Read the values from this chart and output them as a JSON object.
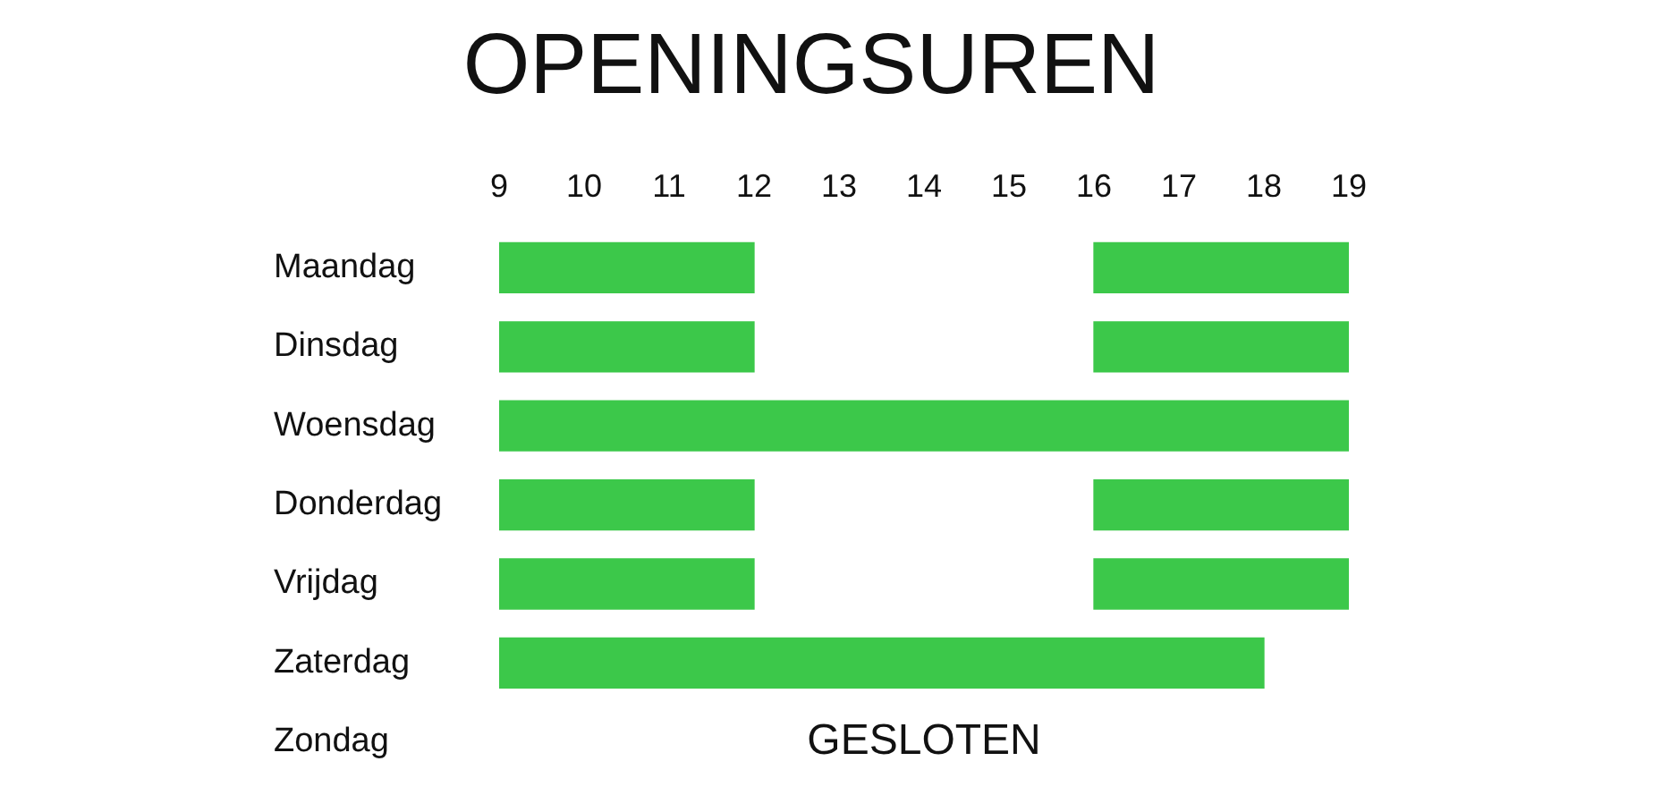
{
  "chart_data": {
    "type": "bar",
    "orientation": "horizontal",
    "title": "OPENINGSUREN",
    "categories": [
      "Maandag",
      "Dinsdag",
      "Woensdag",
      "Donderdag",
      "Vrijdag",
      "Zaterdag",
      "Zondag"
    ],
    "series": [
      {
        "color": "#3cc84a",
        "base": [
          9,
          9,
          9,
          9,
          9,
          9,
          null
        ],
        "values": [
          3,
          3,
          10,
          3,
          3,
          9,
          null
        ]
      },
      {
        "color": "#3cc84a",
        "base": [
          16,
          16,
          null,
          16,
          16,
          null,
          null
        ],
        "values": [
          3,
          3,
          null,
          3,
          3,
          null,
          null
        ]
      }
    ],
    "xlim": [
      9,
      19
    ],
    "xticks": [
      9,
      10,
      11,
      12,
      13,
      14,
      15,
      16,
      17,
      18,
      19
    ],
    "grid": false,
    "legend": false,
    "annotations": [
      "GESLOTEN"
    ]
  }
}
